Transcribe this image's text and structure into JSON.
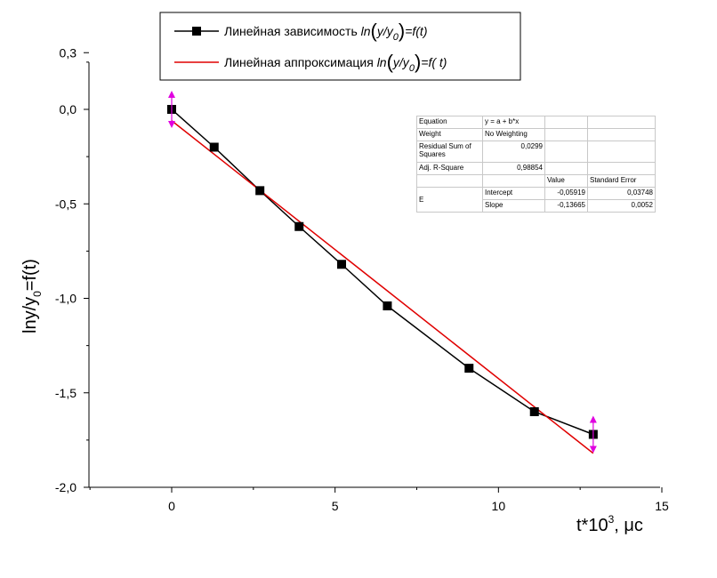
{
  "chart_data": {
    "type": "scatter",
    "title": "",
    "xlabel": "t*10",
    "xlabel_sup": "3",
    "xlabel_unit": ", μc",
    "ylabel": "lny/y",
    "ylabel_sub": "0",
    "ylabel_end": "=f(t)",
    "xlim": [
      -2.5,
      15
    ],
    "ylim": [
      -2.0,
      0.3
    ],
    "xticks": [
      0,
      5,
      10,
      15
    ],
    "xtick_labels": [
      "0",
      "5",
      "10",
      "15"
    ],
    "yticks": [
      0.3,
      0.0,
      -0.5,
      -1.0,
      -1.5,
      -2.0
    ],
    "ytick_labels": [
      "0,3",
      "0,0",
      "-0,5",
      "-1,0",
      "-1,5",
      "-2,0"
    ],
    "grid": false,
    "legend_position": "top",
    "series": [
      {
        "name": "Линейная зависимость ln(y/y0)=f(t)",
        "legend_prefix": "Линейная зависимость ",
        "legend_formula": "ln(y/y0)=f(t)",
        "style": "line-square-markers",
        "color": "#000000",
        "x": [
          0,
          1.3,
          2.7,
          3.9,
          5.2,
          6.6,
          9.1,
          11.1,
          12.9
        ],
        "y": [
          0.0,
          -0.2,
          -0.43,
          -0.62,
          -0.82,
          -1.04,
          -1.37,
          -1.6,
          -1.72
        ]
      },
      {
        "name": "Линейная аппроксимация ln(y/y0)=f(t)",
        "legend_prefix": "Линейная аппроксимация ",
        "legend_formula": "ln(y/y0)=f(t)",
        "style": "line",
        "color": "#e00000",
        "x": [
          0,
          12.9
        ],
        "y": [
          -0.06,
          -1.82
        ]
      }
    ],
    "error_arrows": {
      "color": "#e000e0",
      "points": [
        {
          "x": 0,
          "y": 0.0
        },
        {
          "x": 12.9,
          "y": -1.72
        }
      ]
    },
    "fit_table": {
      "equation_label": "Equation",
      "equation_value": "y = a + b*x",
      "weight_label": "Weight",
      "weight_value": "No Weighting",
      "rss_label": "Residual Sum of Squares",
      "rss_value": "0,0299",
      "r2_label": "Adj. R-Square",
      "r2_value": "0,98854",
      "value_header": "Value",
      "stderr_header": "Standard Error",
      "param_group": "E",
      "intercept_label": "Intercept",
      "intercept_value": "-0,05919",
      "intercept_err": "0,03748",
      "slope_label": "Slope",
      "slope_value": "-0,13665",
      "slope_err": "0,0052"
    }
  }
}
